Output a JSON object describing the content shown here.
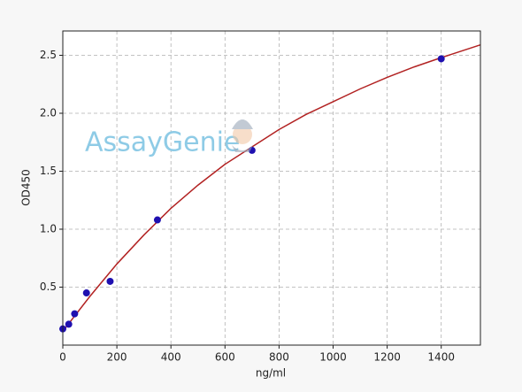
{
  "chart_data": {
    "type": "scatter",
    "watermark": "AssayGenie",
    "x_label": "ng/ml",
    "y_label": "OD450",
    "xlim": [
      0,
      1545
    ],
    "ylim": [
      0,
      2.71
    ],
    "xticks": [
      0,
      200,
      400,
      600,
      800,
      1000,
      1200,
      1400
    ],
    "yticks": [
      0.5,
      {
        "value": 1,
        "label": "1.0"
      },
      1.5,
      {
        "value": 2,
        "label": "2.0"
      },
      2.5
    ],
    "grid": true,
    "points": {
      "color": "#1f10b0",
      "x": [
        0,
        21.875,
        43.75,
        87.5,
        175,
        350,
        700,
        1400
      ],
      "y": [
        0.14,
        0.18,
        0.27,
        0.45,
        0.55,
        1.08,
        1.68,
        2.47
      ]
    },
    "fit": {
      "color": "#b22222",
      "x": [
        0,
        100,
        200,
        300,
        400,
        500,
        600,
        700,
        800,
        900,
        1000,
        1100,
        1200,
        1300,
        1400,
        1545
      ],
      "y": [
        0.12,
        0.42,
        0.7,
        0.95,
        1.18,
        1.38,
        1.56,
        1.71,
        1.86,
        1.99,
        2.1,
        2.21,
        2.31,
        2.4,
        2.48,
        2.59
      ]
    }
  }
}
